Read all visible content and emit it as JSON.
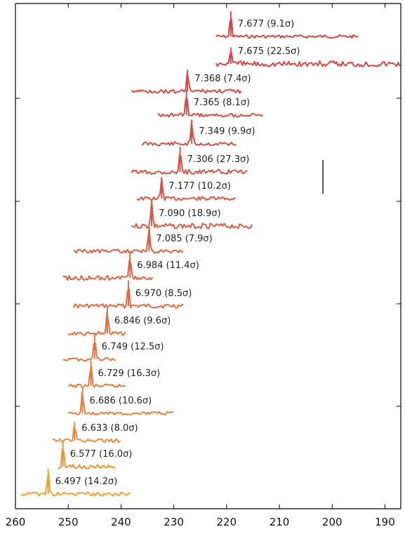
{
  "chart_data": {
    "type": "line",
    "title": "",
    "xlabel": "",
    "ylabel": "",
    "x_axis_reversed": true,
    "xlim": [
      260,
      187
    ],
    "x_ticks": [
      260,
      250,
      240,
      230,
      220,
      210,
      200,
      190
    ],
    "grid": false,
    "legend": "none",
    "colors": {
      "top": "#c94a48",
      "mid": "#d9704a",
      "bottom": "#eda040",
      "axis": "#000000",
      "text": "#222222"
    },
    "series": [
      {
        "label": "7.677 (9.1σ)",
        "x_start": 222,
        "x_end": 195,
        "peak_x": 219.2,
        "peak_height": 1.0,
        "noise": 0.18,
        "color": "#c94a48"
      },
      {
        "label": "7.675 (22.5σ)",
        "x_start": 222,
        "x_end": 187,
        "peak_x": 219.2,
        "peak_height": 0.65,
        "noise": 0.35,
        "color": "#c94a48"
      },
      {
        "label": "7.368 (7.4σ)",
        "x_start": 238,
        "x_end": 217,
        "peak_x": 227.4,
        "peak_height": 0.85,
        "noise": 0.22,
        "color": "#ca4d48"
      },
      {
        "label": "7.365 (8.1σ)",
        "x_start": 233,
        "x_end": 213,
        "peak_x": 227.6,
        "peak_height": 1.0,
        "noise": 0.22,
        "color": "#cb5048"
      },
      {
        "label": "7.349 (9.9σ)",
        "x_start": 236,
        "x_end": 218,
        "peak_x": 226.6,
        "peak_height": 0.95,
        "noise": 0.25,
        "color": "#cc5448"
      },
      {
        "label": "7.306 (27.3σ)",
        "x_start": 238,
        "x_end": 216,
        "peak_x": 228.8,
        "peak_height": 1.0,
        "noise": 0.28,
        "color": "#cd5748"
      },
      {
        "label": "7.177 (10.2σ)",
        "x_start": 237,
        "x_end": 218,
        "peak_x": 232.3,
        "peak_height": 0.85,
        "noise": 0.22,
        "color": "#cf5b48"
      },
      {
        "label": "7.090 (18.9σ)",
        "x_start": 238,
        "x_end": 215,
        "peak_x": 234.2,
        "peak_height": 1.0,
        "noise": 0.3,
        "color": "#d05e48"
      },
      {
        "label": "7.085 (7.9σ)",
        "x_start": 249,
        "x_end": 228,
        "peak_x": 234.7,
        "peak_height": 1.0,
        "noise": 0.2,
        "color": "#d36348"
      },
      {
        "label": "6.984 (11.4σ)",
        "x_start": 251,
        "x_end": 234,
        "peak_x": 238.3,
        "peak_height": 1.0,
        "noise": 0.3,
        "color": "#d66848"
      },
      {
        "label": "6.970 (8.5σ)",
        "x_start": 249,
        "x_end": 228,
        "peak_x": 238.6,
        "peak_height": 1.0,
        "noise": 0.25,
        "color": "#d86c47"
      },
      {
        "label": "6.846 (9.6σ)",
        "x_start": 250,
        "x_end": 239,
        "peak_x": 242.6,
        "peak_height": 1.0,
        "noise": 0.22,
        "color": "#db7246"
      },
      {
        "label": "6.749 (12.5σ)",
        "x_start": 251,
        "x_end": 241,
        "peak_x": 245.0,
        "peak_height": 1.0,
        "noise": 0.2,
        "color": "#de7844"
      },
      {
        "label": "6.729 (16.3σ)",
        "x_start": 250,
        "x_end": 239,
        "peak_x": 245.7,
        "peak_height": 1.0,
        "noise": 0.2,
        "color": "#e07e43"
      },
      {
        "label": "6.686 (10.6σ)",
        "x_start": 250,
        "x_end": 230,
        "peak_x": 247.3,
        "peak_height": 1.0,
        "noise": 0.18,
        "color": "#e38441"
      },
      {
        "label": "6.633 (8.0σ)",
        "x_start": 253,
        "x_end": 240,
        "peak_x": 248.8,
        "peak_height": 0.75,
        "noise": 0.2,
        "color": "#e68b40"
      },
      {
        "label": "6.577 (16.0σ)",
        "x_start": 252,
        "x_end": 241,
        "peak_x": 251.0,
        "peak_height": 1.0,
        "noise": 0.25,
        "color": "#e9933f"
      },
      {
        "label": "6.497 (14.2σ)",
        "x_start": 259,
        "x_end": 238,
        "peak_x": 253.8,
        "peak_height": 1.0,
        "noise": 0.22,
        "color": "#eda040"
      }
    ]
  }
}
